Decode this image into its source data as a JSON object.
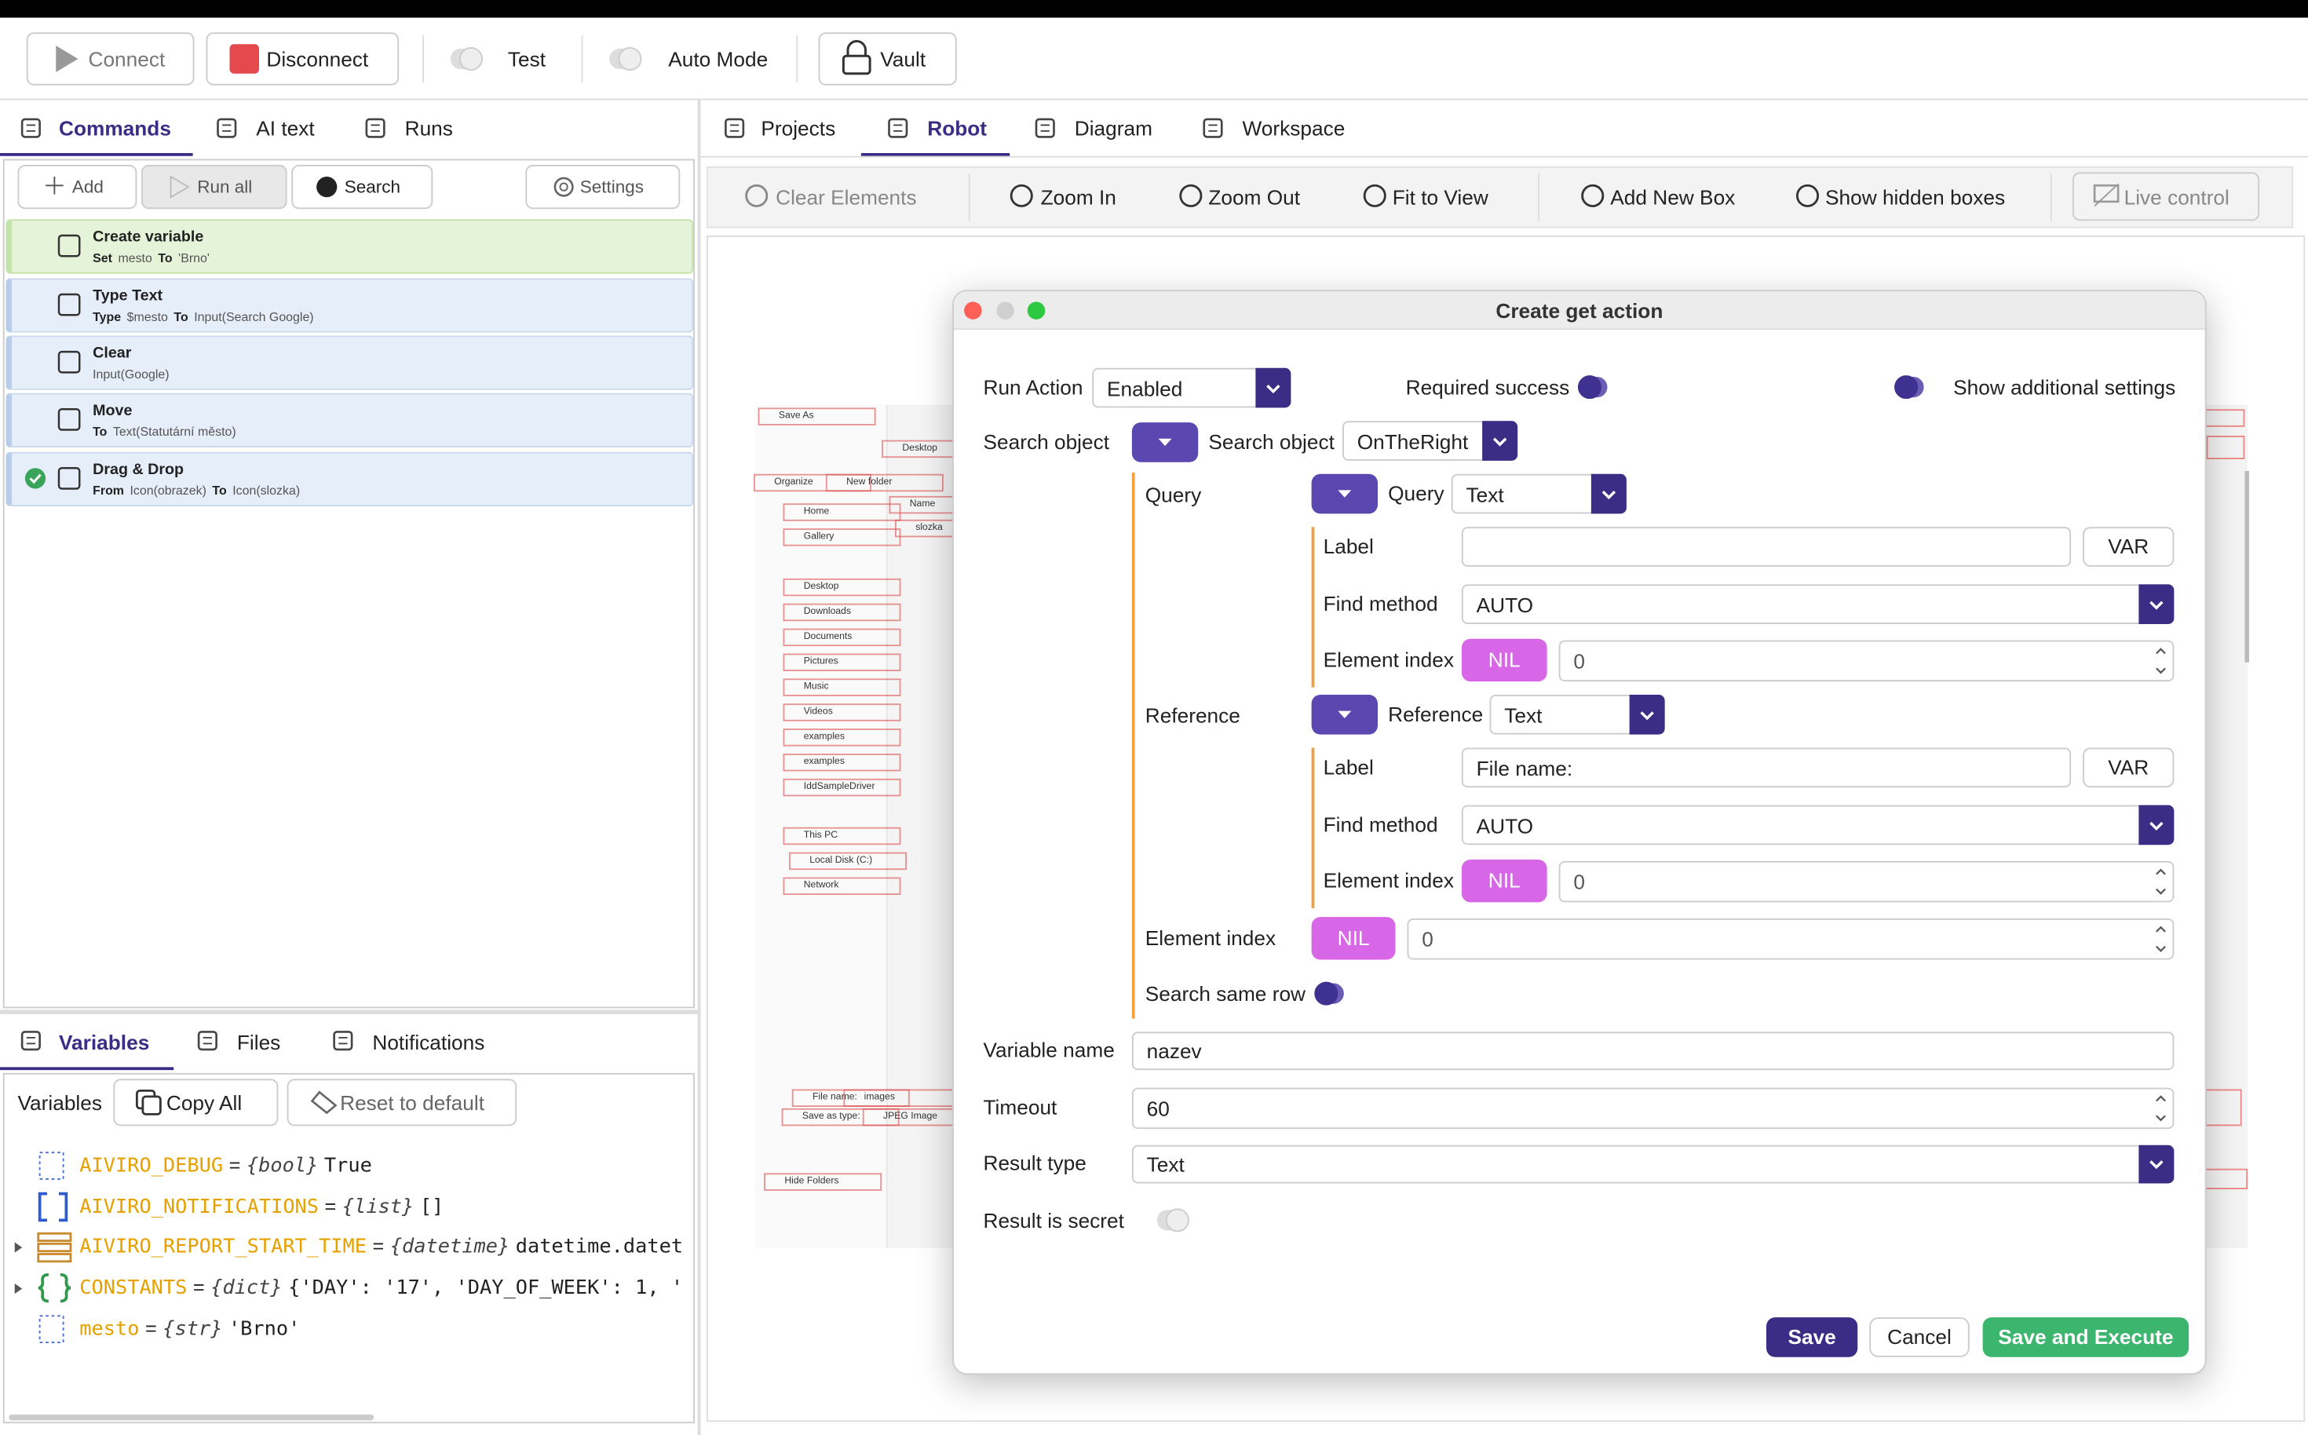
{
  "toolbar": {
    "connect": "Connect",
    "disconnect": "Disconnect",
    "test": "Test",
    "auto_mode": "Auto Mode",
    "vault": "Vault"
  },
  "left_tabs": [
    "Commands",
    "AI text",
    "Runs"
  ],
  "commands_toolbar": {
    "add": "Add",
    "run_all": "Run all",
    "search": "Search",
    "settings": "Settings"
  },
  "commands": [
    {
      "title": "Create variable",
      "detail": [
        {
          "keyword": "Set"
        },
        {
          "text": "mesto"
        },
        {
          "keyword": "To"
        },
        {
          "text": "'Brno'"
        }
      ]
    },
    {
      "title": "Type Text",
      "detail": [
        {
          "keyword": "Type"
        },
        {
          "text": "$mesto"
        },
        {
          "keyword": "To"
        },
        {
          "text": "Input(Search Google)"
        }
      ]
    },
    {
      "title": "Clear",
      "detail": [
        {
          "text": "Input(Google)"
        }
      ]
    },
    {
      "title": "Move",
      "detail": [
        {
          "keyword": "To"
        },
        {
          "text": "Text(Statutární město)"
        }
      ]
    },
    {
      "title": "Drag & Drop",
      "detail": [
        {
          "keyword": "From"
        },
        {
          "text": "Icon(obrazek)"
        },
        {
          "keyword": "To"
        },
        {
          "text": "Icon(slozka)"
        }
      ]
    }
  ],
  "bottom_tabs": [
    "Variables",
    "Files",
    "Notifications"
  ],
  "variables_toolbar": {
    "label": "Variables",
    "copy_all": "Copy All",
    "reset": "Reset to default"
  },
  "assign": "=",
  "variables": [
    {
      "name": "AIVIRO_DEBUG",
      "type": "{bool}",
      "value": "True"
    },
    {
      "name": "AIVIRO_NOTIFICATIONS",
      "type": "{list}",
      "value": "[]"
    },
    {
      "name": "AIVIRO_REPORT_START_TIME",
      "type": "{datetime}",
      "value": "datetime.datet"
    },
    {
      "name": "CONSTANTS",
      "type": "{dict}",
      "value": "{'DAY': '17', 'DAY_OF_WEEK': 1, '"
    },
    {
      "name": "mesto",
      "type": "{str}",
      "value": "'Brno'"
    }
  ],
  "right_tabs": [
    "Projects",
    "Robot",
    "Diagram",
    "Workspace"
  ],
  "robot_toolbar": [
    "Clear Elements",
    "Zoom In",
    "Zoom Out",
    "Fit to View",
    "Add New Box",
    "Show hidden boxes",
    "Live control"
  ],
  "canvas_preview": [
    "Save As",
    "Desktop",
    "Organize",
    "New folder",
    "Home",
    "Name",
    "slozka",
    "Gallery",
    "Desktop",
    "Downloads",
    "Documents",
    "Pictures",
    "Music",
    "Videos",
    "examples",
    "examples",
    "IddSampleDriver",
    "This PC",
    "Local Disk (C:)",
    "Network",
    "File name:",
    "images",
    "Save as type:",
    "JPEG Image",
    "Hide Folders"
  ],
  "dialog": {
    "title": "Create get action",
    "run_action": {
      "label": "Run Action",
      "value": "Enabled"
    },
    "required_success": "Required success",
    "show_additional": "Show additional settings",
    "search_object": {
      "label": "Search object",
      "inner_label": "Search object",
      "value": "OnTheRight"
    },
    "query": {
      "label": "Query",
      "inner_label": "Query",
      "value": "Text",
      "label_field": "Label",
      "var": "VAR",
      "find_method": "Find method",
      "find_value": "AUTO",
      "element_index": "Element index",
      "nil": "NIL",
      "index_value": "0"
    },
    "reference": {
      "label": "Reference",
      "inner_label": "Reference",
      "value": "Text",
      "label_field": "Label",
      "label_value": "File name:",
      "var": "VAR",
      "find_method": "Find method",
      "find_value": "AUTO",
      "element_index": "Element index",
      "nil": "NIL",
      "index_value": "0"
    },
    "element_index": {
      "label": "Element index",
      "nil": "NIL",
      "value": "0"
    },
    "search_same_row": "Search same row",
    "variable_name": {
      "label": "Variable name",
      "value": "nazev"
    },
    "timeout": {
      "label": "Timeout",
      "value": "60"
    },
    "result_type": {
      "label": "Result type",
      "value": "Text"
    },
    "result_secret": "Result is secret",
    "buttons": {
      "save": "Save",
      "cancel": "Cancel",
      "save_execute": "Save and Execute"
    }
  }
}
